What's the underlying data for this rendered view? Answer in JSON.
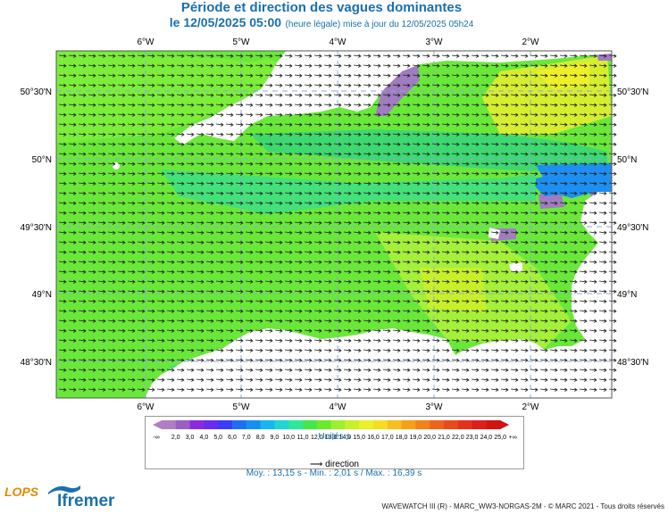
{
  "title": "Période et direction des vagues dominantes",
  "subtitle_date": "le 12/05/2025 05:00",
  "subtitle_note": "(heure légale) mise à jour du 12/05/2025 05h24",
  "lon_labels": [
    "6°W",
    "5°W",
    "4°W",
    "3°W",
    "2°W"
  ],
  "lat_labels": [
    "50°30'N",
    "50°N",
    "49°30'N",
    "49°N",
    "48°30'N"
  ],
  "legend": {
    "low_end": "-∞",
    "high_end": "+∞",
    "values": [
      "2,0",
      "3,0",
      "4,0",
      "5,0",
      "6,0",
      "7,0",
      "8,0",
      "9,0",
      "10,0",
      "11,0",
      "12,0",
      "13,0",
      "14,0",
      "15,0",
      "16,0",
      "17,0",
      "18,0",
      "19,0",
      "20,0",
      "21,0",
      "22,0",
      "23,0",
      "24,0",
      "25,0"
    ],
    "colors": [
      "#b07fc2",
      "#9a5fc4",
      "#8a2be2",
      "#6a2cf0",
      "#3b3cf5",
      "#1e6ff0",
      "#1690f0",
      "#16b7f0",
      "#1fd6d0",
      "#2ee89a",
      "#44e64a",
      "#6aea2c",
      "#9ef02c",
      "#c8f02a",
      "#eaf02a",
      "#f5de22",
      "#f7be1f",
      "#f5a019",
      "#f2821a",
      "#ee631c",
      "#e84a1c",
      "#e2321c",
      "#dc1e1c",
      "#d01414"
    ],
    "units": "Unités:s",
    "direction_label": "direction"
  },
  "stats": "Moy. : 13,15 s   -   Min. : 2,01 s / Max. : 16,39 s",
  "footer": "WAVEWATCH III (R) - MARC_WW3-NORGAS-2M - © MARC 2021 - Tous droits réservés",
  "logos": {
    "lops": "LOPS",
    "ifremer": "Ifremer"
  },
  "colors": {
    "land": "#ffffff",
    "sea_main": "#6ae83a",
    "sea_light": "#9df03a",
    "sea_yellow": "#e0f030",
    "sea_cyan": "#3fe08a",
    "sea_blue": "#1e8ff0",
    "sea_purple": "#a07cc0",
    "grid": "#8aa8e0",
    "title": "#1a6fb0"
  }
}
